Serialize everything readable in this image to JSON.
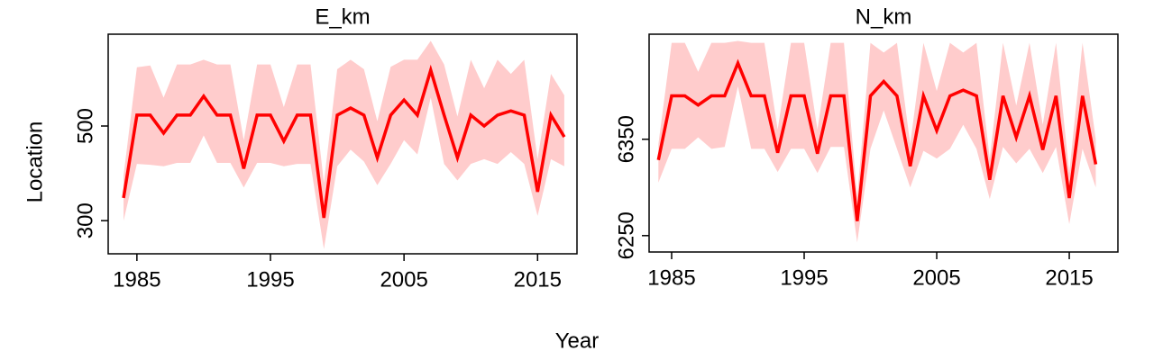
{
  "xlabel": "Year",
  "ylabel": "Location",
  "chart_data": [
    {
      "type": "line",
      "title": "E_km",
      "x": [
        1984,
        1985,
        1986,
        1987,
        1988,
        1989,
        1990,
        1991,
        1992,
        1993,
        1994,
        1995,
        1996,
        1997,
        1998,
        1999,
        2000,
        2001,
        2002,
        2003,
        2004,
        2005,
        2006,
        2007,
        2008,
        2009,
        2010,
        2011,
        2012,
        2013,
        2014,
        2015,
        2016,
        2017
      ],
      "xlim": [
        1982.85,
        2017.95
      ],
      "xticks": [
        1985,
        1995,
        2005,
        2015
      ],
      "ylim": [
        230,
        694
      ],
      "yticks": [
        300,
        500
      ],
      "series": [
        {
          "color": "#ff0000",
          "band_color": "#ffcccc",
          "values": [
            348,
            523,
            523,
            485,
            523,
            523,
            563,
            523,
            523,
            410,
            523,
            523,
            468,
            523,
            523,
            306,
            523,
            538,
            523,
            433,
            523,
            555,
            523,
            618,
            523,
            433,
            523,
            500,
            523,
            532,
            523,
            361,
            523,
            477
          ],
          "upper": [
            395,
            624,
            628,
            560,
            630,
            630,
            640,
            630,
            630,
            470,
            630,
            630,
            540,
            630,
            630,
            380,
            620,
            640,
            620,
            510,
            625,
            640,
            640,
            680,
            630,
            520,
            640,
            580,
            640,
            610,
            640,
            430,
            610,
            565
          ],
          "lower": [
            300,
            420,
            418,
            415,
            422,
            422,
            480,
            422,
            422,
            370,
            422,
            422,
            415,
            420,
            420,
            240,
            415,
            450,
            425,
            375,
            420,
            470,
            440,
            560,
            420,
            385,
            420,
            430,
            420,
            445,
            420,
            310,
            430,
            415
          ]
        }
      ]
    },
    {
      "type": "line",
      "title": "N_km",
      "x": [
        1984,
        1985,
        1986,
        1987,
        1988,
        1989,
        1990,
        1991,
        1992,
        1993,
        1994,
        1995,
        1996,
        1997,
        1998,
        1999,
        2000,
        2001,
        2002,
        2003,
        2004,
        2005,
        2006,
        2007,
        2008,
        2009,
        2010,
        2011,
        2012,
        2013,
        2014,
        2015,
        2016,
        2017
      ],
      "xlim": [
        1983.3,
        2018.67
      ],
      "xticks": [
        1985,
        1995,
        2005,
        2015
      ],
      "ylim": [
        6233,
        6459
      ],
      "yticks": [
        6250,
        6350
      ],
      "series": [
        {
          "color": "#ff0000",
          "band_color": "#ffcccc",
          "values": [
            6328.5,
            6395,
            6395,
            6385.5,
            6395,
            6395,
            6429,
            6395,
            6395,
            6336,
            6395,
            6395,
            6335,
            6395,
            6395,
            6265,
            6395,
            6410,
            6395,
            6322,
            6395,
            6359,
            6395,
            6401,
            6395,
            6308,
            6395,
            6352,
            6395,
            6339,
            6395,
            6289,
            6395,
            6324
          ],
          "upper": [
            6345,
            6450,
            6450,
            6420,
            6450,
            6450,
            6452,
            6450,
            6450,
            6360,
            6450,
            6450,
            6360,
            6450,
            6450,
            6290,
            6450,
            6440,
            6450,
            6345,
            6450,
            6400,
            6450,
            6440,
            6450,
            6330,
            6450,
            6385,
            6450,
            6365,
            6450,
            6315,
            6450,
            6350
          ],
          "lower": [
            6305,
            6340,
            6340,
            6352,
            6340,
            6342,
            6405,
            6340,
            6340,
            6316,
            6340,
            6340,
            6315,
            6342,
            6342,
            6243,
            6340,
            6380,
            6340,
            6300,
            6338,
            6330,
            6340,
            6365,
            6340,
            6288,
            6342,
            6325,
            6340,
            6315,
            6342,
            6262,
            6340,
            6300
          ]
        }
      ]
    }
  ]
}
